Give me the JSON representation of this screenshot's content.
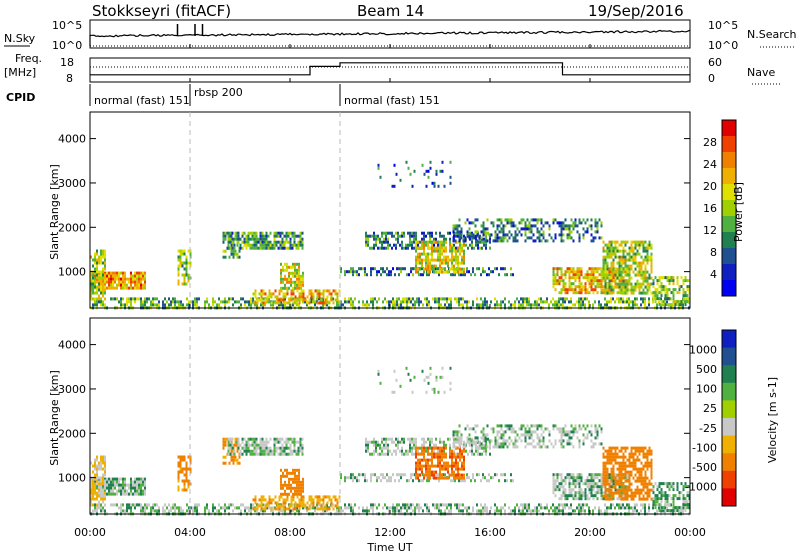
{
  "header": {
    "station": "Stokkseyri (fitACF)",
    "beam": "Beam 14",
    "date": "19/Sep/2016"
  },
  "top_panel": {
    "left_label": "N.Sky",
    "left_ticks": [
      "10^5",
      "10^0"
    ],
    "right_ticks": [
      "10^5",
      "10^0"
    ],
    "right_label": "N.Search"
  },
  "freq_panel": {
    "left_label_1": "Freq.",
    "left_label_2": "[MHz]",
    "left_ticks": [
      "18",
      "8"
    ],
    "right_ticks": [
      "60",
      "0"
    ],
    "right_label": "Nave"
  },
  "cpid": {
    "label": "CPID",
    "segments": [
      {
        "text": "normal (fast) 151",
        "start_h": 0
      },
      {
        "text": "rbsp 200",
        "start_h": 4.0
      },
      {
        "text": "normal (fast) 151",
        "start_h": 10.0
      }
    ]
  },
  "x_axis": {
    "label": "Time UT",
    "ticks": [
      "00:00",
      "04:00",
      "08:00",
      "12:00",
      "16:00",
      "20:00",
      "00:00"
    ],
    "range_hours": [
      0,
      24
    ]
  },
  "power_panel": {
    "ylabel": "Slant Range [km]",
    "yticks": [
      "4000",
      "3000",
      "2000",
      "1000"
    ],
    "colorbar_label": "Power [dB]",
    "colorbar_ticks": [
      "28",
      "24",
      "20",
      "16",
      "12",
      "8",
      "4"
    ],
    "colorbar_colors": [
      "#e00000",
      "#f04000",
      "#f08000",
      "#f0b000",
      "#e0e000",
      "#a0d000",
      "#50b040",
      "#208050",
      "#205090",
      "#1020c0",
      "#0000f0"
    ]
  },
  "velocity_panel": {
    "ylabel": "Slant Range [km]",
    "yticks": [
      "4000",
      "3000",
      "2000",
      "1000"
    ],
    "colorbar_label": "Velocity [m s-1]",
    "colorbar_ticks": [
      "1000",
      "500",
      "100",
      "25",
      "-25",
      "-100",
      "-500",
      "-1000"
    ],
    "colorbar_colors": [
      "#1020c0",
      "#205090",
      "#208050",
      "#50b040",
      "#a0d000",
      "#c8c8c8",
      "#f0b000",
      "#f08000",
      "#f04000",
      "#e00000"
    ]
  },
  "chart_data": {
    "type": "heatmap",
    "x_range_hours": [
      0,
      24
    ],
    "y_range_km": [
      180,
      4600
    ],
    "vertical_markers_hours": [
      4.0,
      10.0
    ],
    "scatter_regions": [
      {
        "t0": 0.0,
        "t1": 2.2,
        "r0": 600,
        "r1": 1000,
        "density": 0.85,
        "pow": 22,
        "vel": 15
      },
      {
        "t0": 0.0,
        "t1": 0.6,
        "r0": 400,
        "r1": 1500,
        "density": 0.7,
        "pow": 16,
        "vel": -30
      },
      {
        "t0": 0.0,
        "t1": 24.0,
        "r0": 200,
        "r1": 420,
        "density": 0.55,
        "pow": 12,
        "vel": 10
      },
      {
        "t0": 3.5,
        "t1": 4.0,
        "r0": 700,
        "r1": 1500,
        "density": 0.6,
        "pow": 14,
        "vel": -200
      },
      {
        "t0": 5.3,
        "t1": 6.0,
        "r0": 1300,
        "r1": 1900,
        "density": 0.6,
        "pow": 10,
        "vel": -150
      },
      {
        "t0": 5.5,
        "t1": 8.5,
        "r0": 1500,
        "r1": 1900,
        "density": 0.7,
        "pow": 10,
        "vel": 5
      },
      {
        "t0": 7.6,
        "t1": 8.5,
        "r0": 600,
        "r1": 1200,
        "density": 0.7,
        "pow": 18,
        "vel": -300
      },
      {
        "t0": 6.5,
        "t1": 10.0,
        "r0": 300,
        "r1": 600,
        "density": 0.6,
        "pow": 20,
        "vel": -80
      },
      {
        "t0": 11.0,
        "t1": 16.0,
        "r0": 1500,
        "r1": 1900,
        "density": 0.55,
        "pow": 8,
        "vel": 5
      },
      {
        "t0": 10.0,
        "t1": 17.0,
        "r0": 900,
        "r1": 1100,
        "density": 0.45,
        "pow": 8,
        "vel": 5
      },
      {
        "t0": 13.0,
        "t1": 15.0,
        "r0": 1000,
        "r1": 1700,
        "density": 0.7,
        "pow": 18,
        "vel": -400
      },
      {
        "t0": 14.5,
        "t1": 20.5,
        "r0": 1700,
        "r1": 2200,
        "density": 0.45,
        "pow": 8,
        "vel": 5
      },
      {
        "t0": 18.5,
        "t1": 21.5,
        "r0": 500,
        "r1": 1100,
        "density": 0.7,
        "pow": 20,
        "vel": 10
      },
      {
        "t0": 20.5,
        "t1": 22.5,
        "r0": 500,
        "r1": 1700,
        "density": 0.65,
        "pow": 16,
        "vel": -300
      },
      {
        "t0": 22.5,
        "t1": 24.0,
        "r0": 250,
        "r1": 900,
        "density": 0.6,
        "pow": 14,
        "vel": 20
      },
      {
        "t0": 11.5,
        "t1": 14.5,
        "r0": 2900,
        "r1": 3500,
        "density": 0.08,
        "pow": 6,
        "vel": 5
      }
    ],
    "freq_steps": [
      {
        "t0": 0.0,
        "t1": 8.8,
        "level": 0.3
      },
      {
        "t0": 8.8,
        "t1": 10.0,
        "level": 0.65
      },
      {
        "t0": 10.0,
        "t1": 18.9,
        "level": 0.8
      },
      {
        "t0": 18.9,
        "t1": 24.0,
        "level": 0.3
      }
    ]
  }
}
